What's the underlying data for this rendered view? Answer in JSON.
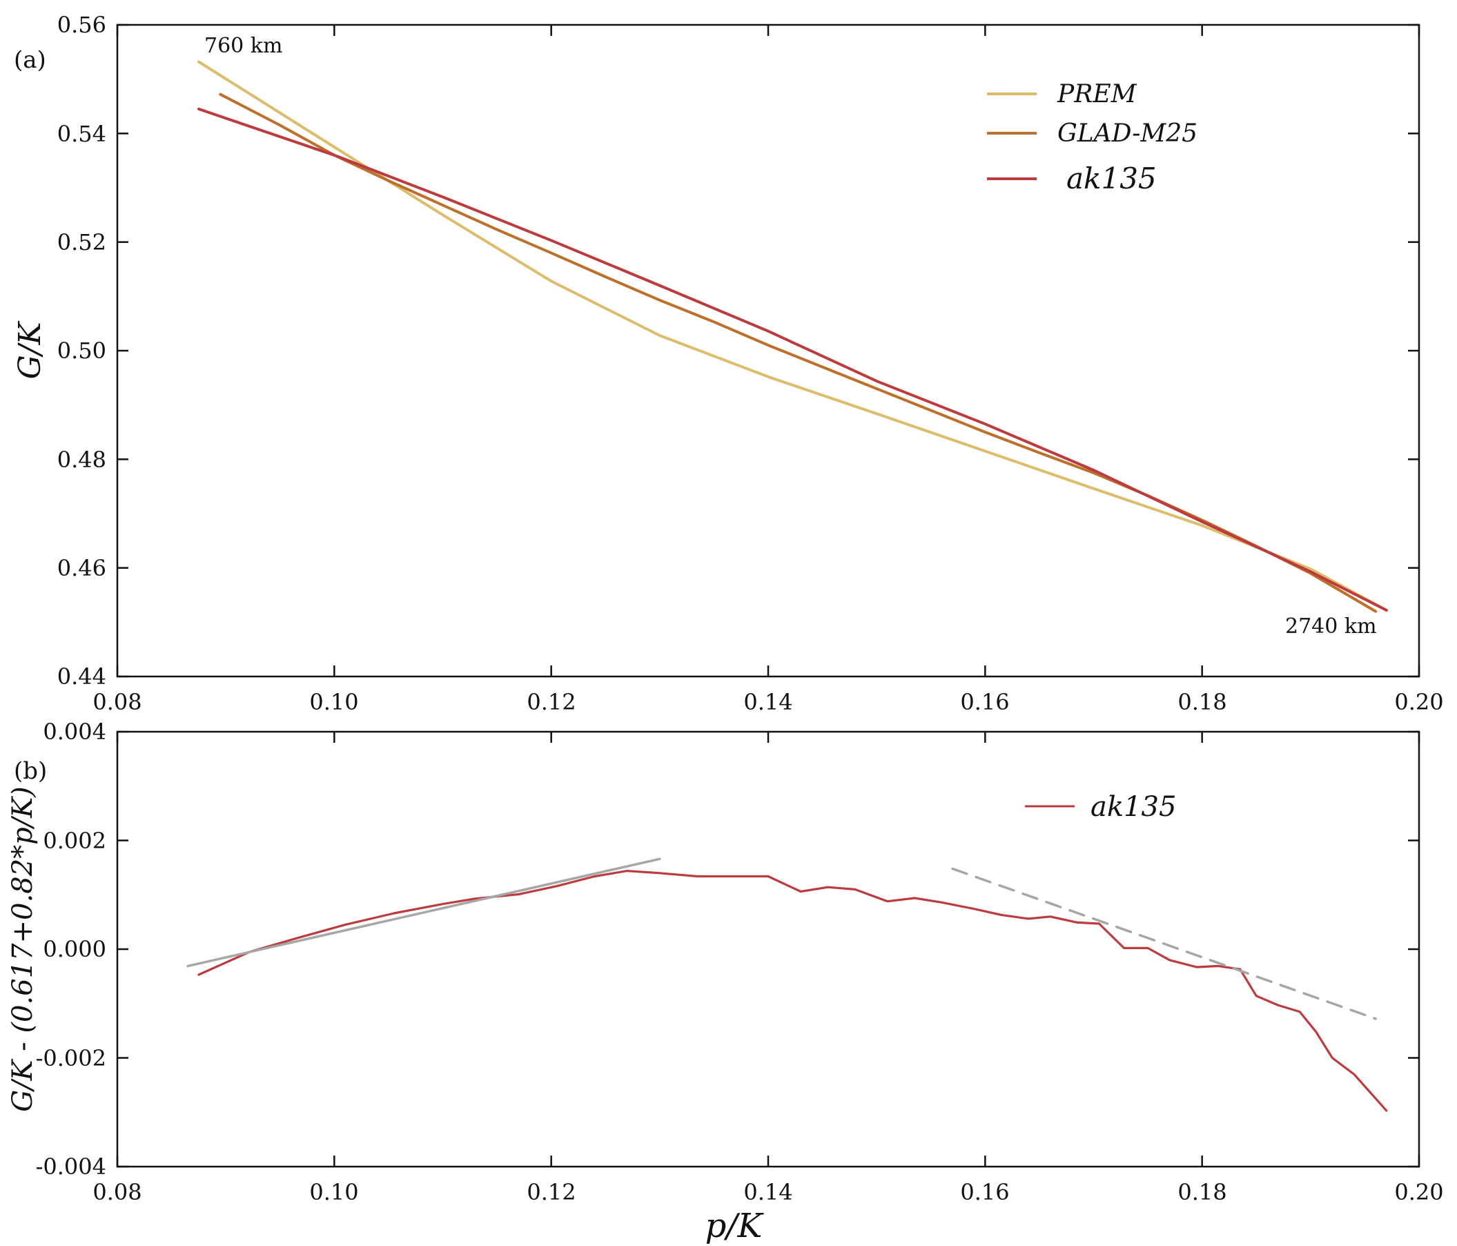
{
  "figure": {
    "xlabel": "p/K",
    "panels": [
      {
        "tag": "(a)",
        "ylabel": "G/K",
        "xticks": [
          "0.08",
          "0.10",
          "0.12",
          "0.14",
          "0.16",
          "0.18",
          "0.20"
        ],
        "yticks": [
          "0.44",
          "0.46",
          "0.48",
          "0.50",
          "0.52",
          "0.54",
          "0.56"
        ],
        "annotations": [
          "760 km",
          "2740 km"
        ],
        "legend": [
          "PREM",
          "GLAD-M25",
          "ak135"
        ]
      },
      {
        "tag": "(b)",
        "ylabel": "G/K - (0.617+0.82*p/K)",
        "xticks": [
          "0.08",
          "0.10",
          "0.12",
          "0.14",
          "0.16",
          "0.18",
          "0.20"
        ],
        "yticks": [
          "-0.004",
          "-0.002",
          "0.000",
          "0.002",
          "0.004"
        ],
        "legend": [
          "ak135"
        ]
      }
    ]
  },
  "chart_data": [
    {
      "type": "line",
      "title": "",
      "xlabel": "p/K",
      "ylabel": "G/K",
      "xlim": [
        0.08,
        0.2
      ],
      "ylim": [
        0.44,
        0.56
      ],
      "grid": false,
      "legend_position": "top-right",
      "annotations": [
        {
          "text": "760 km",
          "x": 0.0885,
          "y": 0.5565
        },
        {
          "text": "2740 km",
          "x": 0.1935,
          "y": 0.4525
        }
      ],
      "series": [
        {
          "name": "PREM",
          "color": "#dcbd6c",
          "x": [
            0.0875,
            0.1,
            0.11,
            0.12,
            0.13,
            0.14,
            0.15,
            0.16,
            0.17,
            0.18,
            0.19,
            0.197
          ],
          "y": [
            0.5532,
            0.5375,
            0.525,
            0.5128,
            0.5028,
            0.4952,
            0.4884,
            0.4815,
            0.4746,
            0.4678,
            0.4598,
            0.4522
          ]
        },
        {
          "name": "GLAD-M25",
          "color": "#bd7029",
          "x": [
            0.0895,
            0.095,
            0.1,
            0.105,
            0.11,
            0.115,
            0.12,
            0.125,
            0.13,
            0.135,
            0.14,
            0.145,
            0.15,
            0.155,
            0.16,
            0.165,
            0.17,
            0.175,
            0.18,
            0.185,
            0.19,
            0.196
          ],
          "y": [
            0.5472,
            0.5415,
            0.536,
            0.5313,
            0.5268,
            0.5223,
            0.518,
            0.5136,
            0.5093,
            0.5053,
            0.501,
            0.497,
            0.493,
            0.489,
            0.485,
            0.4812,
            0.4775,
            0.4733,
            0.4688,
            0.464,
            0.459,
            0.452
          ]
        },
        {
          "name": "ak135",
          "color": "#bd3b3e",
          "x": [
            0.0875,
            0.1,
            0.11,
            0.12,
            0.13,
            0.14,
            0.15,
            0.16,
            0.17,
            0.18,
            0.19,
            0.197
          ],
          "y": [
            0.5445,
            0.536,
            0.5283,
            0.5203,
            0.512,
            0.5036,
            0.4944,
            0.4865,
            0.478,
            0.4685,
            0.4593,
            0.4522
          ]
        }
      ]
    },
    {
      "type": "line",
      "title": "",
      "xlabel": "p/K",
      "ylabel": "G/K - (0.617+0.82*p/K)",
      "xlim": [
        0.08,
        0.2
      ],
      "ylim": [
        -0.004,
        0.004
      ],
      "grid": false,
      "legend_position": "top-right",
      "series": [
        {
          "name": "ak135",
          "color": "#bd3b3e",
          "x": [
            0.0875,
            0.0922,
            0.0965,
            0.101,
            0.1055,
            0.11,
            0.113,
            0.117,
            0.1205,
            0.124,
            0.127,
            0.13,
            0.1335,
            0.137,
            0.14,
            0.143,
            0.1455,
            0.148,
            0.151,
            0.1535,
            0.156,
            0.159,
            0.1615,
            0.164,
            0.166,
            0.1685,
            0.1705,
            0.1728,
            0.175,
            0.177,
            0.1795,
            0.1815,
            0.1835,
            0.185,
            0.187,
            0.189,
            0.1905,
            0.192,
            0.194,
            0.197
          ],
          "y": [
            -0.00047,
            -5e-05,
            0.0002,
            0.00045,
            0.00066,
            0.00083,
            0.00093,
            0.00101,
            0.00116,
            0.00134,
            0.00144,
            0.0014,
            0.00134,
            0.00134,
            0.00134,
            0.00106,
            0.00114,
            0.0011,
            0.00088,
            0.00094,
            0.00086,
            0.00074,
            0.00063,
            0.00056,
            0.0006,
            0.00049,
            0.00047,
            2e-05,
            2e-05,
            -0.0002,
            -0.00033,
            -0.00031,
            -0.00037,
            -0.00086,
            -0.00103,
            -0.00115,
            -0.00152,
            -0.002,
            -0.0023,
            -0.00297
          ]
        },
        {
          "name": "",
          "color": "#a6a6a6",
          "style": "solid",
          "x": [
            0.0865,
            0.13
          ],
          "y": [
            -0.00031,
            0.00166
          ]
        },
        {
          "name": "",
          "color": "#a6a6a6",
          "style": "dashed",
          "x": [
            0.157,
            0.196
          ],
          "y": [
            0.00148,
            -0.00128
          ]
        }
      ]
    }
  ]
}
